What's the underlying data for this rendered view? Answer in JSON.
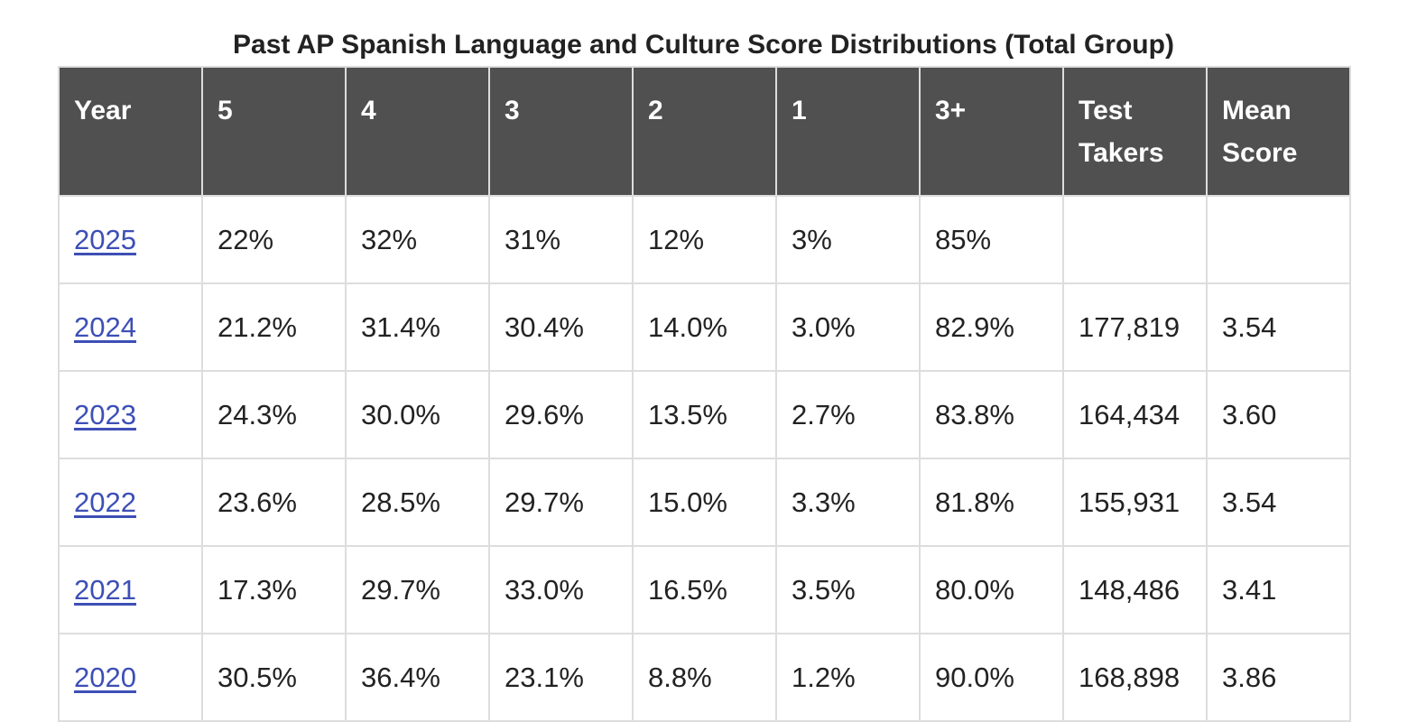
{
  "table": {
    "caption": "Past AP Spanish Language and Culture Score Distributions (Total Group)",
    "headers": [
      "Year",
      "5",
      "4",
      "3",
      "2",
      "1",
      "3+",
      "Test Takers",
      "Mean Score"
    ],
    "rows": [
      {
        "year": "2025",
        "s5": "22%",
        "s4": "32%",
        "s3": "31%",
        "s2": "12%",
        "s1": "3%",
        "s3plus": "85%",
        "takers": "",
        "mean": ""
      },
      {
        "year": "2024",
        "s5": "21.2%",
        "s4": "31.4%",
        "s3": "30.4%",
        "s2": "14.0%",
        "s1": "3.0%",
        "s3plus": "82.9%",
        "takers": "177,819",
        "mean": "3.54"
      },
      {
        "year": "2023",
        "s5": "24.3%",
        "s4": "30.0%",
        "s3": "29.6%",
        "s2": "13.5%",
        "s1": "2.7%",
        "s3plus": "83.8%",
        "takers": "164,434",
        "mean": "3.60"
      },
      {
        "year": "2022",
        "s5": "23.6%",
        "s4": "28.5%",
        "s3": "29.7%",
        "s2": "15.0%",
        "s1": "3.3%",
        "s3plus": "81.8%",
        "takers": "155,931",
        "mean": "3.54"
      },
      {
        "year": "2021",
        "s5": "17.3%",
        "s4": "29.7%",
        "s3": "33.0%",
        "s2": "16.5%",
        "s1": "3.5%",
        "s3plus": "80.0%",
        "takers": "148,486",
        "mean": "3.41"
      },
      {
        "year": "2020",
        "s5": "30.5%",
        "s4": "36.4%",
        "s3": "23.1%",
        "s2": "8.8%",
        "s1": "1.2%",
        "s3plus": "90.0%",
        "takers": "168,898",
        "mean": "3.86"
      }
    ]
  },
  "colors": {
    "header_bg": "#505050",
    "header_text": "#ffffff",
    "link": "#3d4fb6",
    "border": "#dddddd",
    "text": "#222222"
  }
}
